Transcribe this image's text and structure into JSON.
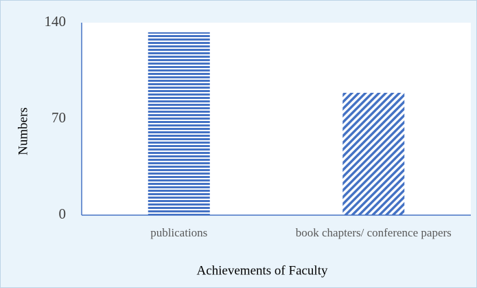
{
  "chart_data": {
    "type": "bar",
    "categories": [
      "publications",
      "book chapters/ conference papers"
    ],
    "values": [
      133,
      89
    ],
    "color": "#4472c4",
    "hatch": [
      "horizontal",
      "diagonal"
    ],
    "ylim": [
      0,
      140
    ],
    "yticks": [
      0,
      70,
      140
    ],
    "xlabel": "Achievements of Faculty",
    "ylabel": "Numbers",
    "grid": false
  }
}
